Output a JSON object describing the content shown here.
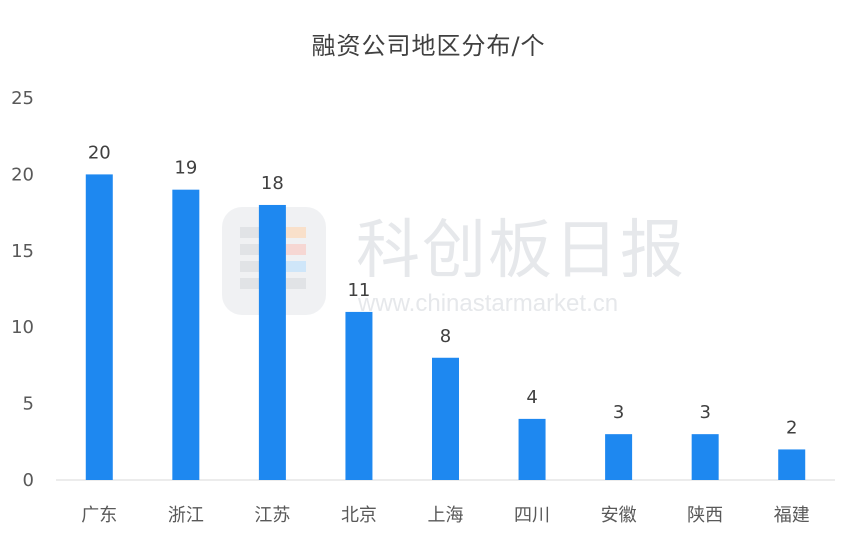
{
  "chart_data": {
    "type": "bar",
    "title": "融资公司地区分布/个",
    "categories": [
      "广东",
      "浙江",
      "江苏",
      "北京",
      "上海",
      "四川",
      "安徽",
      "陕西",
      "福建"
    ],
    "values": [
      20,
      19,
      18,
      11,
      8,
      4,
      3,
      3,
      2
    ],
    "ylim": [
      0,
      25
    ],
    "yticks": [
      0,
      5,
      10,
      15,
      20,
      25
    ],
    "grid": false,
    "bar_color": "#1E88F0"
  },
  "watermark": {
    "brand": "科创板日报",
    "url": "www.chinastarmarket.cn"
  }
}
